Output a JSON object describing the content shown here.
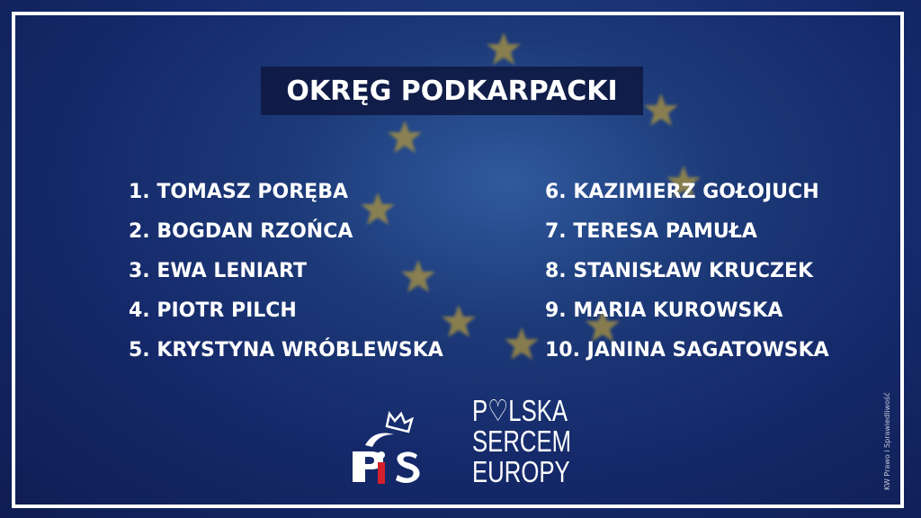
{
  "title": "OKRĘG PODKARPACKI",
  "candidates_left": [
    "1. TOMASZ PORĘBA",
    "2. BOGDAN RZOŃCA",
    "3. EWA LENIART",
    "4. PIOTR PILCH",
    "5. KRYSTYNA WRÓBLEWSKA"
  ],
  "candidates_right": [
    "6. KAZIMIERZ GOŁOJUCH",
    "7. TERESA PAMUŁA",
    "8. STANISŁAW KRUCZEK",
    "9. MARIA KUROWSKA",
    "10. JANINA SAGATOWSKA"
  ],
  "logo_pis": "PiS",
  "slogan": {
    "line1_start": "P",
    "line1_end": "LSKA",
    "line2": "SERCEM",
    "line3": "EUROPY"
  },
  "footer_vertical": "KW Prawo i Sprawiedliwość",
  "colors": {
    "background": "#15296a",
    "accent_red": "#d5202e",
    "star": "#b59a3c"
  }
}
